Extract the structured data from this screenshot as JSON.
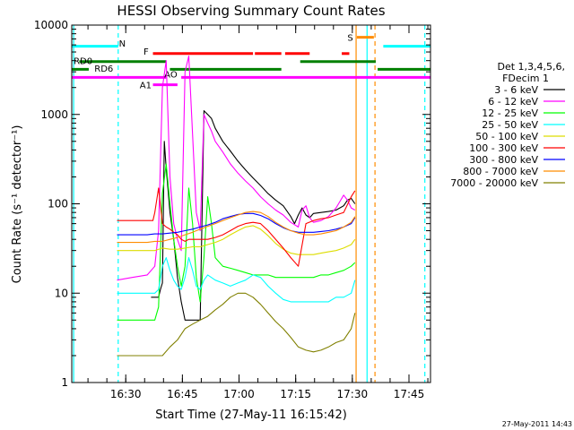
{
  "chart_data": {
    "type": "line",
    "title": "HESSI Observing Summary Count Rates",
    "xlabel": "Start Time (27-May-11 16:15:42)",
    "ylabel": "Count Rate (s⁻¹ detector⁻¹)",
    "x_unit": "minutes since 16:15:42",
    "xlim": [
      0,
      95
    ],
    "ylim": [
      1,
      10000
    ],
    "yscale": "log",
    "xticks": [
      {
        "pos": 14.3,
        "label": "16:30"
      },
      {
        "pos": 29.3,
        "label": "16:45"
      },
      {
        "pos": 44.3,
        "label": "17:00"
      },
      {
        "pos": 59.3,
        "label": "17:15"
      },
      {
        "pos": 74.3,
        "label": "17:30"
      },
      {
        "pos": 89.3,
        "label": "17:45"
      }
    ],
    "yticks": [
      {
        "value": 1,
        "label": "1"
      },
      {
        "value": 10,
        "label": "10"
      },
      {
        "value": 100,
        "label": "100"
      },
      {
        "value": 1000,
        "label": "1000"
      },
      {
        "value": 10000,
        "label": "10000"
      }
    ],
    "legend": {
      "header": [
        "Det 1,3,4,5,6,",
        "FDecim 1"
      ],
      "placement": "right"
    },
    "series": [
      {
        "name": "3 - 6 keV",
        "color": "#000000",
        "x": [
          21,
          23,
          23.5,
          24,
          24.5,
          25,
          26,
          27,
          28,
          29,
          30,
          31,
          32,
          33,
          34,
          35,
          36,
          37,
          38,
          40,
          42,
          44,
          46,
          48,
          50,
          52,
          54,
          56,
          58,
          59,
          60,
          61,
          62,
          63,
          64,
          66,
          68,
          70,
          72,
          73,
          74,
          75
        ],
        "y": [
          9,
          9,
          11,
          13,
          500,
          250,
          80,
          40,
          15,
          8,
          5,
          5,
          5,
          5,
          5,
          1100,
          1000,
          900,
          700,
          500,
          390,
          300,
          240,
          195,
          160,
          130,
          110,
          95,
          72,
          60,
          75,
          90,
          75,
          70,
          78,
          80,
          82,
          85,
          95,
          110,
          115,
          100
        ]
      },
      {
        "name": "6 - 12 keV",
        "color": "#ff00ff",
        "x": [
          12,
          16,
          20,
          22,
          23,
          24,
          25,
          26,
          27,
          28,
          29,
          30,
          31,
          32,
          33,
          34,
          35,
          36,
          37,
          38,
          40,
          42,
          44,
          46,
          48,
          50,
          52,
          54,
          56,
          58,
          60,
          61,
          62,
          63,
          64,
          66,
          68,
          70,
          72,
          73,
          74,
          75
        ],
        "y": [
          14,
          15,
          16,
          20,
          50,
          2000,
          4000,
          200,
          60,
          40,
          30,
          3000,
          4500,
          600,
          80,
          50,
          1000,
          800,
          650,
          500,
          380,
          280,
          220,
          180,
          150,
          120,
          100,
          85,
          75,
          62,
          55,
          85,
          95,
          70,
          62,
          65,
          72,
          90,
          125,
          110,
          90,
          85
        ]
      },
      {
        "name": "12 - 25 keV",
        "color": "#00ff00",
        "x": [
          12,
          16,
          20,
          22,
          23,
          24,
          25,
          26,
          27,
          28,
          29,
          30,
          31,
          32,
          33,
          34,
          35,
          36,
          37,
          38,
          40,
          42,
          44,
          46,
          48,
          50,
          52,
          54,
          56,
          58,
          60,
          62,
          64,
          66,
          68,
          70,
          72,
          74,
          75
        ],
        "y": [
          5,
          5,
          5,
          5,
          7,
          130,
          280,
          100,
          40,
          20,
          12,
          20,
          150,
          60,
          15,
          8,
          25,
          120,
          60,
          25,
          20,
          19,
          18,
          17,
          16,
          16,
          16,
          15,
          15,
          15,
          15,
          15,
          15,
          16,
          16,
          17,
          18,
          20,
          22
        ]
      },
      {
        "name": "25 - 50 keV",
        "color": "#00ffff",
        "x": [
          12,
          16,
          20,
          22,
          23,
          24,
          25,
          26,
          27,
          28,
          29,
          30,
          31,
          32,
          33,
          34,
          35,
          36,
          38,
          40,
          42,
          44,
          46,
          48,
          50,
          52,
          54,
          56,
          58,
          60,
          62,
          64,
          66,
          68,
          70,
          72,
          74,
          75
        ],
        "y": [
          10,
          10,
          10,
          10,
          11,
          20,
          25,
          18,
          14,
          12,
          11,
          15,
          25,
          18,
          12,
          11,
          14,
          16,
          14,
          13,
          12,
          13,
          14,
          16,
          15,
          12,
          10,
          8.5,
          8,
          8,
          8,
          8,
          8,
          8,
          9,
          9,
          10,
          14
        ]
      },
      {
        "name": "50 - 100 keV",
        "color": "#dddd00",
        "x": [
          12,
          16,
          20,
          22,
          24,
          26,
          28,
          30,
          32,
          34,
          36,
          38,
          40,
          42,
          44,
          46,
          48,
          50,
          52,
          54,
          56,
          58,
          60,
          62,
          64,
          66,
          68,
          70,
          72,
          74,
          75
        ],
        "y": [
          30,
          30,
          30,
          30,
          32,
          31,
          31,
          32,
          33,
          33,
          35,
          37,
          40,
          45,
          50,
          55,
          57,
          52,
          44,
          36,
          31,
          28,
          27,
          27,
          27,
          28,
          29,
          30,
          32,
          35,
          40
        ]
      },
      {
        "name": "100 - 300 keV",
        "color": "#ff0000",
        "x": [
          12,
          16,
          20,
          21.5,
          22,
          23,
          24,
          25,
          26,
          27,
          28,
          29,
          30,
          31,
          32,
          34,
          36,
          38,
          40,
          42,
          44,
          46,
          48,
          50,
          52,
          54,
          56,
          58,
          60,
          62,
          64,
          66,
          68,
          70,
          72,
          74,
          75
        ],
        "y": [
          65,
          65,
          65,
          65,
          80,
          150,
          60,
          55,
          52,
          48,
          45,
          40,
          38,
          40,
          40,
          40,
          40,
          42,
          45,
          50,
          56,
          60,
          62,
          60,
          50,
          40,
          32,
          25,
          20,
          60,
          65,
          68,
          70,
          75,
          80,
          120,
          140
        ]
      },
      {
        "name": "300 - 800 keV",
        "color": "#0000ff",
        "x": [
          12,
          16,
          20,
          22,
          24,
          26,
          28,
          30,
          32,
          34,
          36,
          38,
          40,
          42,
          44,
          46,
          48,
          50,
          52,
          54,
          56,
          58,
          60,
          62,
          64,
          66,
          68,
          70,
          72,
          74,
          75
        ],
        "y": [
          45,
          45,
          45,
          46,
          46,
          47,
          48,
          50,
          52,
          55,
          58,
          62,
          68,
          72,
          76,
          78,
          78,
          74,
          68,
          60,
          54,
          50,
          48,
          48,
          48,
          49,
          50,
          52,
          55,
          60,
          70
        ]
      },
      {
        "name": "800 - 7000 keV",
        "color": "#ff8c00",
        "x": [
          12,
          16,
          20,
          22,
          24,
          26,
          28,
          30,
          32,
          34,
          36,
          38,
          40,
          42,
          44,
          46,
          48,
          50,
          52,
          54,
          56,
          58,
          60,
          62,
          64,
          66,
          68,
          70,
          72,
          74,
          75
        ],
        "y": [
          37,
          37,
          37,
          38,
          38,
          40,
          42,
          45,
          48,
          52,
          56,
          60,
          65,
          70,
          75,
          80,
          82,
          80,
          72,
          62,
          55,
          50,
          47,
          45,
          45,
          46,
          48,
          50,
          55,
          62,
          72
        ]
      },
      {
        "name": "7000 - 20000 keV",
        "color": "#808000",
        "x": [
          12,
          16,
          20,
          22,
          24,
          26,
          28,
          30,
          32,
          34,
          36,
          38,
          40,
          42,
          44,
          46,
          48,
          50,
          52,
          54,
          56,
          58,
          60,
          62,
          64,
          66,
          68,
          70,
          72,
          74,
          75
        ],
        "y": [
          2,
          2,
          2,
          2,
          2,
          2.5,
          3,
          4,
          4.5,
          5,
          5.5,
          6.5,
          7.5,
          9,
          10,
          10,
          9,
          7.5,
          6,
          4.8,
          4,
          3.2,
          2.5,
          2.3,
          2.2,
          2.3,
          2.5,
          2.8,
          3,
          4,
          6
        ]
      }
    ],
    "flag_bars": [
      {
        "label": "N",
        "color": "#00ffff",
        "y": 5800,
        "segments": [
          [
            0,
            12.3
          ],
          [
            82.5,
            95
          ]
        ],
        "label_x": 12.5,
        "label_y": 6300
      },
      {
        "label": "S",
        "color": "#ff8c00",
        "y": 7300,
        "segments": [
          [
            75.5,
            80
          ]
        ],
        "label_x": 73,
        "label_y": 7300
      },
      {
        "label": "F",
        "color": "#ff0000",
        "y": 4800,
        "segments": [
          [
            21.5,
            48
          ],
          [
            48.5,
            55.5
          ],
          [
            56.5,
            63
          ],
          [
            71.5,
            73.5
          ]
        ],
        "label_x": 19,
        "label_y": 5100
      },
      {
        "label": "RD0",
        "color": "#008000",
        "y": 3900,
        "segments": [
          [
            2,
            25
          ],
          [
            60.5,
            80.5
          ]
        ],
        "label_x": 0.5,
        "label_y": 4000
      },
      {
        "label": "RD6",
        "color": "#008000",
        "y": 3200,
        "segments": [
          [
            0,
            4.5
          ],
          [
            26,
            55.5
          ],
          [
            81,
            95
          ]
        ],
        "label_x": 6,
        "label_y": 3300
      },
      {
        "label": "AO",
        "color": "#ff00ff",
        "y": 2600,
        "segments": [
          [
            0,
            25
          ],
          [
            29,
            95
          ]
        ],
        "label_x": 24.5,
        "label_y": 2850
      },
      {
        "label": "A1",
        "color": "#ff00ff",
        "y": 2150,
        "segments": [
          [
            21.5,
            28
          ]
        ],
        "label_x": 18,
        "label_y": 2150
      }
    ],
    "vlines": [
      {
        "x": 0.5,
        "color": "#00ffff",
        "style": "solid"
      },
      {
        "x": 12.3,
        "color": "#00ffff",
        "style": "dashed"
      },
      {
        "x": 75.3,
        "color": "#ff8c00",
        "style": "solid"
      },
      {
        "x": 78.2,
        "color": "#00ffff",
        "style": "solid"
      },
      {
        "x": 80.3,
        "color": "#ff8c00",
        "style": "dashed"
      },
      {
        "x": 93.5,
        "color": "#00ffff",
        "style": "dashed"
      }
    ],
    "timestamp": "27-May-2011 14:43"
  }
}
